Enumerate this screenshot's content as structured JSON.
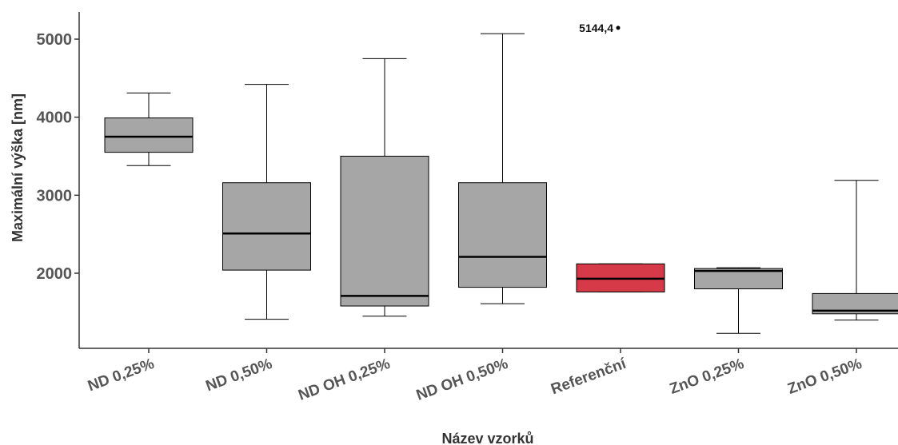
{
  "chart_data": {
    "type": "boxplot",
    "xlabel": "Název vzorků",
    "ylabel": "Maximální výška [nm]",
    "categories": [
      "ND 0,25%",
      "ND 0,50%",
      "ND OH 0,25%",
      "ND OH 0,50%",
      "Referenční",
      "ZnO 0,25%",
      "ZnO 0,50%"
    ],
    "y_ticks": [
      2000,
      3000,
      4000,
      5000
    ],
    "ylim": [
      1050,
      5400
    ],
    "grid": false,
    "boxes": [
      {
        "category": "ND 0,25%",
        "whisker_low": 3380,
        "q1": 3550,
        "median": 3750,
        "q3": 3990,
        "whisker_high": 4310,
        "fill": "#a6a6a6"
      },
      {
        "category": "ND 0,50%",
        "whisker_low": 1410,
        "q1": 2040,
        "median": 2510,
        "q3": 3160,
        "whisker_high": 4420,
        "fill": "#a6a6a6"
      },
      {
        "category": "ND OH 0,25%",
        "whisker_low": 1450,
        "q1": 1580,
        "median": 1710,
        "q3": 3500,
        "whisker_high": 4750,
        "fill": "#a6a6a6"
      },
      {
        "category": "ND OH 0,50%",
        "whisker_low": 1610,
        "q1": 1820,
        "median": 2210,
        "q3": 3160,
        "whisker_high": 5070,
        "fill": "#a6a6a6"
      },
      {
        "category": "Referenční",
        "whisker_low": 1760,
        "q1": 1760,
        "median": 1930,
        "q3": 2120,
        "whisker_high": 2120,
        "fill": "#d63a48"
      },
      {
        "category": "ZnO 0,25%",
        "whisker_low": 1230,
        "q1": 1800,
        "median": 2030,
        "q3": 2060,
        "whisker_high": 2070,
        "fill": "#a6a6a6"
      },
      {
        "category": "ZnO 0,50%",
        "whisker_low": 1400,
        "q1": 1480,
        "median": 1520,
        "q3": 1740,
        "whisker_high": 3190,
        "fill": "#a6a6a6"
      }
    ],
    "outliers": [
      {
        "category": "Referenční",
        "value": 5144.4,
        "label": "5144,4"
      }
    ]
  }
}
